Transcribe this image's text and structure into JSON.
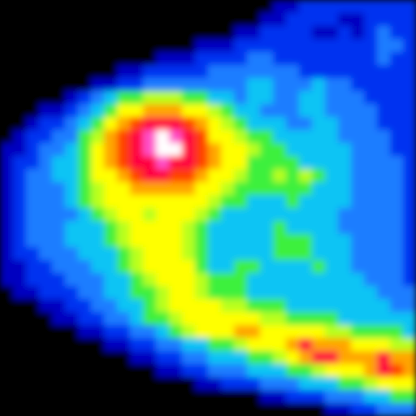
{
  "chart_data": {
    "type": "heatmap",
    "tick_labels": false,
    "zlim": [
      0,
      12
    ],
    "cells": [
      [
        0,
        0,
        0,
        0,
        0,
        0,
        0,
        0,
        0,
        0,
        0,
        0,
        0,
        0,
        0,
        0,
        0,
        0,
        0,
        0,
        0,
        1,
        1,
        2,
        2,
        2,
        2,
        2,
        2,
        2,
        2,
        2
      ],
      [
        0,
        0,
        0,
        0,
        0,
        0,
        0,
        0,
        0,
        0,
        0,
        0,
        0,
        0,
        0,
        0,
        0,
        0,
        0,
        0,
        1,
        1,
        2,
        2,
        2,
        2,
        1,
        1,
        2,
        2,
        2,
        2
      ],
      [
        0,
        0,
        0,
        0,
        0,
        0,
        0,
        0,
        0,
        0,
        0,
        0,
        0,
        0,
        0,
        0,
        0,
        0,
        1,
        1,
        2,
        2,
        2,
        2,
        1,
        1,
        2,
        1,
        2,
        3,
        2,
        2
      ],
      [
        0,
        0,
        0,
        0,
        0,
        0,
        0,
        0,
        0,
        0,
        0,
        0,
        0,
        0,
        0,
        1,
        1,
        1,
        2,
        2,
        2,
        2,
        2,
        2,
        2,
        2,
        2,
        2,
        2,
        3,
        3,
        2
      ],
      [
        0,
        0,
        0,
        0,
        0,
        0,
        0,
        0,
        0,
        0,
        0,
        0,
        1,
        1,
        1,
        2,
        2,
        2,
        2,
        3,
        3,
        2,
        2,
        2,
        2,
        2,
        2,
        2,
        2,
        3,
        2,
        2
      ],
      [
        0,
        0,
        0,
        0,
        0,
        0,
        0,
        0,
        0,
        1,
        1,
        2,
        2,
        2,
        2,
        2,
        3,
        3,
        3,
        3,
        3,
        3,
        3,
        2,
        2,
        2,
        2,
        2,
        2,
        2,
        2,
        2
      ],
      [
        0,
        0,
        0,
        0,
        0,
        0,
        0,
        1,
        1,
        2,
        2,
        3,
        3,
        3,
        3,
        3,
        3,
        3,
        3,
        4,
        4,
        3,
        3,
        3,
        4,
        3,
        3,
        2,
        2,
        2,
        2,
        2
      ],
      [
        0,
        0,
        0,
        0,
        0,
        1,
        2,
        3,
        4,
        5,
        5,
        6,
        6,
        6,
        5,
        5,
        4,
        4,
        3,
        4,
        4,
        3,
        3,
        4,
        4,
        3,
        3,
        3,
        2,
        2,
        2,
        2
      ],
      [
        0,
        0,
        0,
        1,
        1,
        2,
        3,
        4,
        5,
        7,
        7,
        8,
        8,
        8,
        7,
        7,
        6,
        5,
        4,
        4,
        3,
        3,
        3,
        4,
        4,
        3,
        3,
        3,
        3,
        2,
        2,
        2
      ],
      [
        0,
        0,
        1,
        2,
        2,
        3,
        4,
        5,
        7,
        8,
        9,
        10,
        10,
        10,
        9,
        8,
        7,
        6,
        5,
        4,
        4,
        4,
        3,
        3,
        4,
        4,
        3,
        3,
        3,
        2,
        2,
        2
      ],
      [
        0,
        1,
        2,
        2,
        3,
        3,
        5,
        6,
        8,
        9,
        10,
        11,
        12,
        11,
        10,
        9,
        7,
        7,
        6,
        5,
        5,
        4,
        4,
        4,
        4,
        4,
        3,
        3,
        3,
        3,
        2,
        2
      ],
      [
        1,
        1,
        2,
        3,
        3,
        4,
        5,
        7,
        8,
        9,
        10,
        11,
        12,
        12,
        10,
        9,
        8,
        7,
        7,
        6,
        5,
        5,
        4,
        4,
        4,
        4,
        4,
        3,
        3,
        3,
        2,
        2
      ],
      [
        1,
        2,
        2,
        3,
        4,
        4,
        5,
        7,
        8,
        9,
        10,
        10,
        11,
        10,
        10,
        9,
        8,
        7,
        7,
        5,
        5,
        5,
        5,
        4,
        4,
        4,
        4,
        3,
        3,
        3,
        3,
        2
      ],
      [
        1,
        2,
        3,
        3,
        4,
        4,
        5,
        7,
        7,
        8,
        9,
        10,
        10,
        9,
        9,
        8,
        7,
        7,
        6,
        5,
        5,
        6,
        5,
        6,
        5,
        4,
        4,
        3,
        3,
        3,
        3,
        2
      ],
      [
        1,
        2,
        3,
        3,
        3,
        4,
        5,
        6,
        7,
        7,
        8,
        8,
        8,
        8,
        8,
        7,
        7,
        6,
        5,
        5,
        5,
        5,
        5,
        5,
        4,
        4,
        4,
        3,
        3,
        3,
        3,
        2
      ],
      [
        1,
        2,
        3,
        3,
        3,
        4,
        5,
        6,
        7,
        7,
        7,
        7,
        7,
        7,
        7,
        7,
        6,
        5,
        5,
        4,
        4,
        4,
        5,
        4,
        4,
        4,
        4,
        3,
        3,
        3,
        3,
        2
      ],
      [
        1,
        2,
        3,
        3,
        3,
        3,
        4,
        5,
        6,
        7,
        7,
        6,
        7,
        7,
        7,
        6,
        5,
        4,
        4,
        4,
        4,
        4,
        4,
        4,
        4,
        4,
        3,
        3,
        3,
        3,
        3,
        2
      ],
      [
        1,
        2,
        3,
        3,
        3,
        4,
        4,
        4,
        5,
        6,
        7,
        7,
        7,
        7,
        6,
        5,
        4,
        4,
        4,
        4,
        4,
        5,
        4,
        4,
        4,
        4,
        3,
        3,
        3,
        3,
        3,
        2
      ],
      [
        1,
        2,
        3,
        3,
        3,
        4,
        4,
        4,
        5,
        6,
        7,
        7,
        7,
        7,
        6,
        5,
        4,
        4,
        4,
        4,
        4,
        5,
        5,
        5,
        4,
        4,
        4,
        3,
        3,
        3,
        3,
        2
      ],
      [
        1,
        2,
        2,
        3,
        3,
        3,
        4,
        4,
        4,
        5,
        6,
        7,
        7,
        7,
        6,
        5,
        4,
        4,
        4,
        4,
        4,
        5,
        5,
        5,
        4,
        4,
        4,
        3,
        3,
        3,
        3,
        2
      ],
      [
        1,
        1,
        2,
        2,
        3,
        3,
        3,
        4,
        4,
        5,
        6,
        7,
        7,
        7,
        7,
        5,
        4,
        4,
        5,
        5,
        4,
        4,
        4,
        4,
        5,
        4,
        4,
        3,
        3,
        3,
        3,
        2
      ],
      [
        1,
        1,
        2,
        2,
        2,
        3,
        3,
        3,
        4,
        4,
        5,
        6,
        7,
        7,
        7,
        6,
        5,
        5,
        5,
        4,
        4,
        4,
        4,
        4,
        4,
        4,
        4,
        4,
        3,
        3,
        3,
        2
      ],
      [
        0,
        1,
        1,
        2,
        2,
        2,
        3,
        3,
        4,
        4,
        5,
        5,
        6,
        7,
        7,
        6,
        5,
        5,
        5,
        4,
        4,
        4,
        4,
        4,
        4,
        4,
        4,
        4,
        4,
        3,
        3,
        3
      ],
      [
        0,
        0,
        0,
        1,
        1,
        2,
        2,
        3,
        3,
        4,
        4,
        5,
        6,
        7,
        7,
        7,
        7,
        6,
        6,
        5,
        5,
        5,
        4,
        4,
        4,
        4,
        4,
        4,
        4,
        4,
        3,
        3
      ],
      [
        0,
        0,
        0,
        0,
        1,
        1,
        2,
        2,
        3,
        3,
        4,
        5,
        5,
        6,
        7,
        7,
        7,
        7,
        7,
        7,
        6,
        6,
        5,
        5,
        5,
        5,
        4,
        4,
        4,
        4,
        4,
        4
      ],
      [
        0,
        0,
        0,
        0,
        0,
        0,
        1,
        1,
        2,
        2,
        3,
        3,
        4,
        5,
        6,
        7,
        7,
        7,
        8,
        8,
        7,
        7,
        7,
        7,
        7,
        6,
        6,
        5,
        5,
        5,
        5,
        4
      ],
      [
        0,
        0,
        0,
        0,
        0,
        0,
        0,
        0,
        1,
        1,
        2,
        2,
        3,
        3,
        4,
        4,
        5,
        5,
        6,
        7,
        7,
        7,
        8,
        10,
        8,
        8,
        8,
        7,
        7,
        7,
        6,
        6
      ],
      [
        0,
        0,
        0,
        0,
        0,
        0,
        0,
        0,
        0,
        0,
        1,
        1,
        2,
        2,
        3,
        3,
        4,
        4,
        4,
        5,
        5,
        6,
        7,
        8,
        10,
        10,
        8,
        8,
        8,
        10,
        8,
        8
      ],
      [
        0,
        0,
        0,
        0,
        0,
        0,
        0,
        0,
        0,
        0,
        0,
        0,
        1,
        1,
        2,
        2,
        3,
        3,
        3,
        4,
        4,
        4,
        5,
        5,
        6,
        7,
        7,
        7,
        8,
        10,
        9,
        8
      ],
      [
        0,
        0,
        0,
        0,
        0,
        0,
        0,
        0,
        0,
        0,
        0,
        0,
        0,
        0,
        0,
        1,
        1,
        2,
        2,
        2,
        3,
        3,
        3,
        4,
        4,
        4,
        5,
        5,
        6,
        7,
        7,
        7
      ],
      [
        0,
        0,
        0,
        0,
        0,
        0,
        0,
        0,
        0,
        0,
        0,
        0,
        0,
        0,
        0,
        0,
        0,
        0,
        0,
        0,
        1,
        1,
        2,
        2,
        2,
        3,
        3,
        3,
        4,
        4,
        5,
        5
      ],
      [
        0,
        0,
        0,
        0,
        0,
        0,
        0,
        0,
        0,
        0,
        0,
        0,
        0,
        0,
        0,
        0,
        0,
        0,
        0,
        0,
        0,
        0,
        0,
        0,
        0,
        1,
        1,
        2,
        2,
        3,
        3,
        3
      ]
    ]
  }
}
